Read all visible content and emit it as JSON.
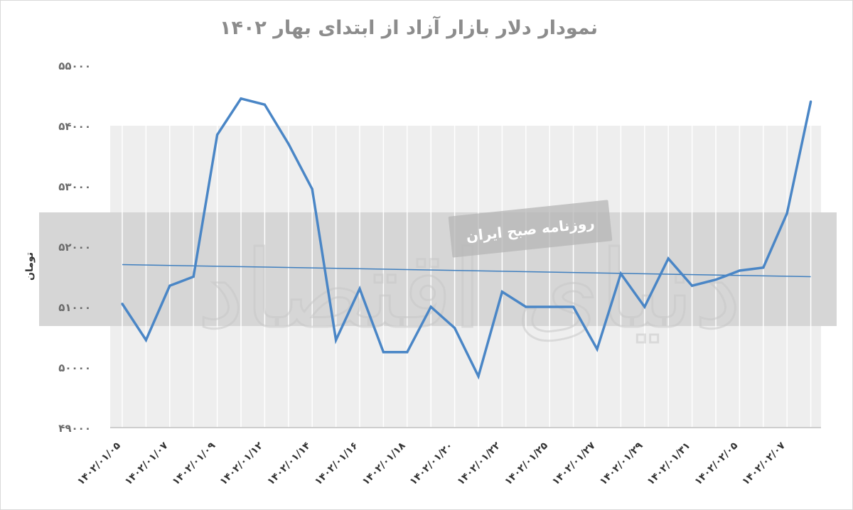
{
  "chart_data": {
    "type": "line",
    "title": "نمودار دلار بازار آزاد از ابتدای بهار ۱۴۰۲",
    "ylabel": "تومان",
    "xlabel": "",
    "ylim": [
      49000,
      55000
    ],
    "yticks": [
      49000,
      50000,
      51000,
      52000,
      53000,
      54000,
      55000
    ],
    "ytick_labels": [
      "۴۹۰۰۰",
      "۵۰۰۰۰",
      "۵۱۰۰۰",
      "۵۲۰۰۰",
      "۵۳۰۰۰",
      "۵۴۰۰۰",
      "۵۵۰۰۰"
    ],
    "x_tick_labels": [
      "۱۴۰۲/۰۱/۰۵",
      "۱۴۰۲/۰۱/۰۷",
      "۱۴۰۲/۰۱/۰۹",
      "۱۴۰۲/۰۱/۱۲",
      "۱۴۰۲/۰۱/۱۴",
      "۱۴۰۲/۰۱/۱۶",
      "۱۴۰۲/۰۱/۱۸",
      "۱۴۰۲/۰۱/۲۰",
      "۱۴۰۲/۰۱/۲۲",
      "۱۴۰۲/۰۱/۲۵",
      "۱۴۰۲/۰۱/۲۷",
      "۱۴۰۲/۰۱/۲۹",
      "۱۴۰۲/۰۱/۳۱",
      "۱۴۰۲/۰۲/۰۵",
      "۱۴۰۲/۰۲/۰۷"
    ],
    "grid": true,
    "series": [
      {
        "values": [
          51050,
          50450,
          51350,
          51500,
          53850,
          54450,
          54350,
          53700,
          52950,
          50450,
          51300,
          50250,
          50250,
          51000,
          50650,
          49850,
          51250,
          51000,
          51000,
          51000,
          50300,
          51550,
          51000,
          51800,
          51350,
          51450,
          51600,
          51650,
          52550,
          54400
        ],
        "color": "#4a86c6"
      }
    ],
    "trendline": {
      "start": 51700,
      "end": 51500,
      "color": "#3f7fbf"
    },
    "colors": {
      "band": "#d4d4d4",
      "plot_bg": "#eeeeee",
      "gridline": "#ffffff"
    }
  },
  "watermark": {
    "label": "روزنامه صبح ایران",
    "logo_text": "دنیای اقتصاد"
  }
}
